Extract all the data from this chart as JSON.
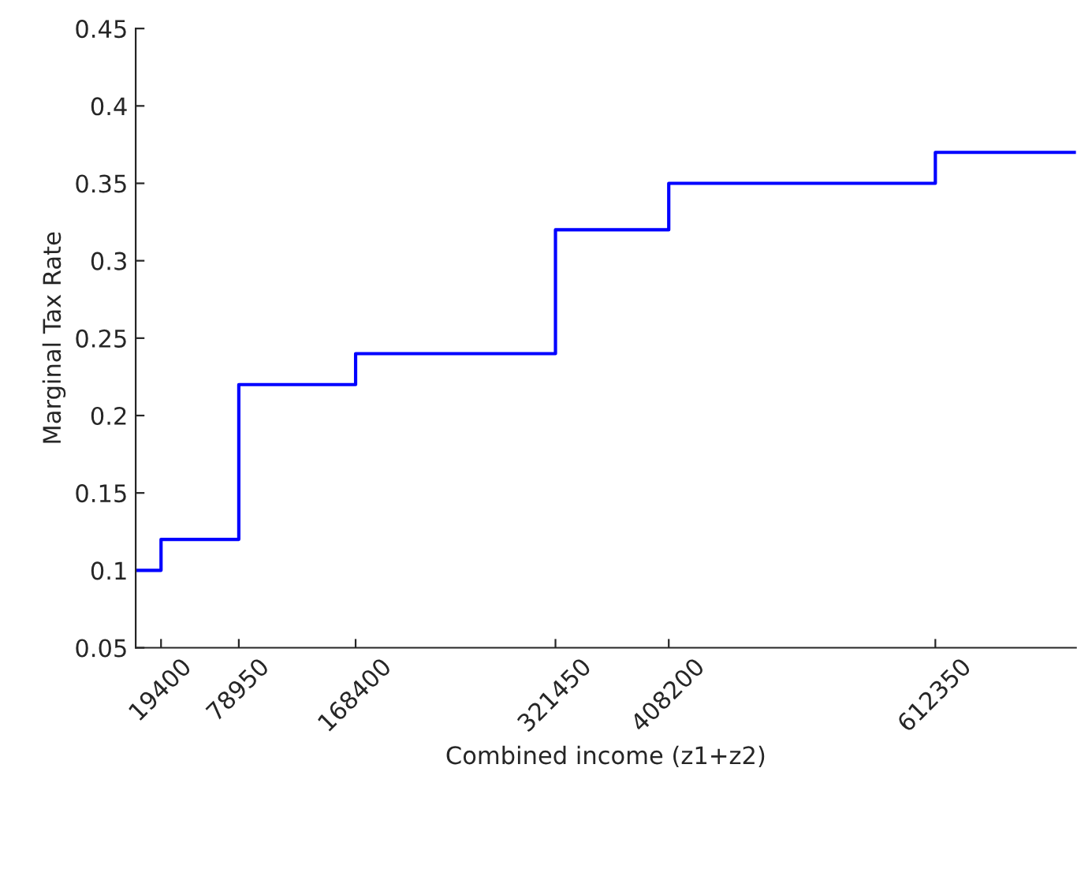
{
  "chart_data": {
    "type": "step",
    "xlabel": "Combined income (z1+z2)",
    "ylabel": "Marginal Tax Rate",
    "x": [
      0,
      19400,
      78950,
      168400,
      321450,
      408200,
      612350,
      720000
    ],
    "series": [
      {
        "color": "#0000ff",
        "values": [
          0.1,
          0.12,
          0.22,
          0.24,
          0.32,
          0.35,
          0.37,
          0.37
        ]
      }
    ],
    "xlim": [
      0,
      720000
    ],
    "xticks": [
      19400,
      78950,
      168400,
      321450,
      408200,
      612350
    ],
    "ylim": [
      0.05,
      0.45
    ],
    "yticks": [
      0.05,
      0.1,
      0.15,
      0.2,
      0.25,
      0.3,
      0.35,
      0.4,
      0.45
    ],
    "grid": false,
    "legend": false
  }
}
